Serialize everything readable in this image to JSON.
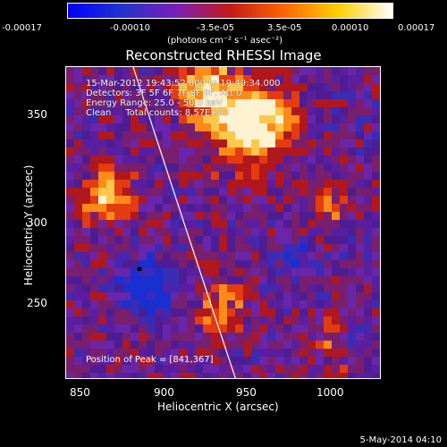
{
  "colorbar": {
    "ticks": [
      "-0.00017",
      "-0.00010",
      "-3.5e-05",
      "3.5e-05",
      "0.00010",
      "0.00017"
    ],
    "units": "(photons cm⁻² s⁻¹ asec⁻²)",
    "colormap": [
      "#0000ff",
      "#2233cc",
      "#7a1fb8",
      "#c41a1a",
      "#ff6600",
      "#ffd000",
      "#ffffff"
    ]
  },
  "title": "Reconstructed RHESSI Image",
  "info": {
    "line1": "15-Mar-2012 19:43:52.000 to 19:49:34.000",
    "line2": "Detectors: 3F 5F 6F 7F 8F 9F, Att 0",
    "line3": "Energy Range: 25.0 - 50.0 keV",
    "line4": "Clean     Total counts: 8.57E+03"
  },
  "peak_text": "Position of Peak = [841,367]",
  "axes": {
    "xlabel": "Heliocentric X (arcsec)",
    "ylabel": "Heliocentric Y (arcsec)",
    "xticks": [
      "850",
      "900",
      "950",
      "1000"
    ],
    "yticks": [
      "350",
      "300",
      "250"
    ]
  },
  "date_stamp": "5-May-2014 04:10"
}
